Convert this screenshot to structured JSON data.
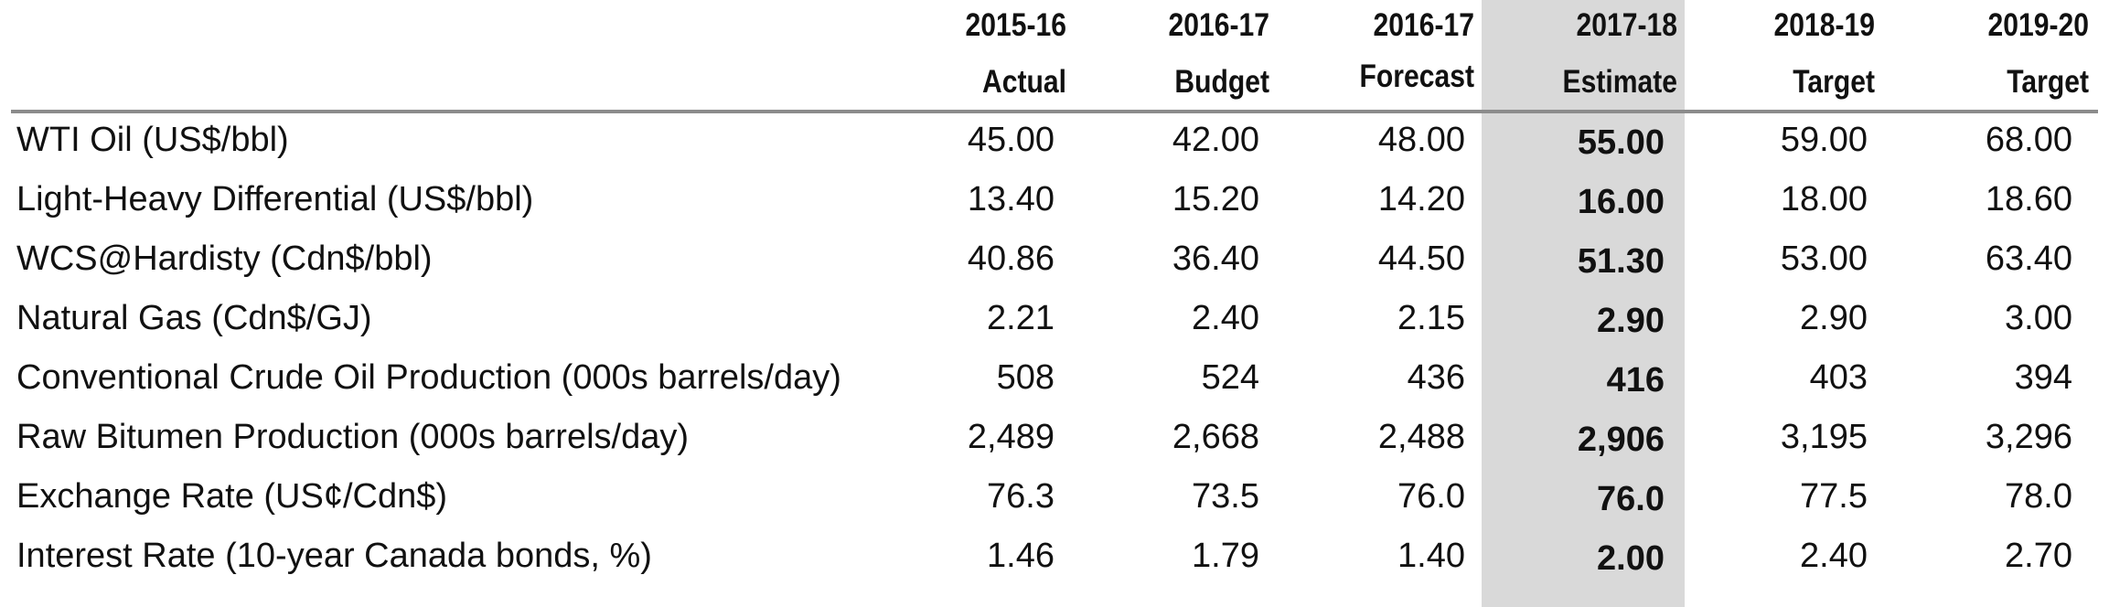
{
  "chart_data": {
    "type": "table",
    "highlight_column": 3,
    "highlight_color": "#d9d9d9",
    "columns": [
      {
        "year": "2015-16",
        "kind": "Actual"
      },
      {
        "year": "2016-17",
        "kind": "Budget"
      },
      {
        "year": "2016-17",
        "kind": "Forecast"
      },
      {
        "year": "2017-18",
        "kind": "Estimate"
      },
      {
        "year": "2018-19",
        "kind": "Target"
      },
      {
        "year": "2019-20",
        "kind": "Target"
      }
    ],
    "rows": [
      {
        "label": "WTI Oil (US$/bbl)",
        "values": [
          "45.00",
          "42.00",
          "48.00",
          "55.00",
          "59.00",
          "68.00"
        ]
      },
      {
        "label": "Light-Heavy Differential (US$/bbl)",
        "values": [
          "13.40",
          "15.20",
          "14.20",
          "16.00",
          "18.00",
          "18.60"
        ]
      },
      {
        "label": "WCS@Hardisty (Cdn$/bbl)",
        "values": [
          "40.86",
          "36.40",
          "44.50",
          "51.30",
          "53.00",
          "63.40"
        ]
      },
      {
        "label": "Natural Gas (Cdn$/GJ)",
        "values": [
          "2.21",
          "2.40",
          "2.15",
          "2.90",
          "2.90",
          "3.00"
        ]
      },
      {
        "label": "Conventional Crude Oil Production (000s barrels/day)",
        "values": [
          "508",
          "524",
          "436",
          "416",
          "403",
          "394"
        ]
      },
      {
        "label": "Raw Bitumen Production (000s barrels/day)",
        "values": [
          "2,489",
          "2,668",
          "2,488",
          "2,906",
          "3,195",
          "3,296"
        ]
      },
      {
        "label": "Exchange Rate (US¢/Cdn$)",
        "values": [
          "76.3",
          "73.5",
          "76.0",
          "76.0",
          "77.5",
          "78.0"
        ]
      },
      {
        "label": "Interest Rate (10-year Canada bonds, %)",
        "values": [
          "1.46",
          "1.79",
          "1.40",
          "2.00",
          "2.40",
          "2.70"
        ]
      }
    ]
  }
}
